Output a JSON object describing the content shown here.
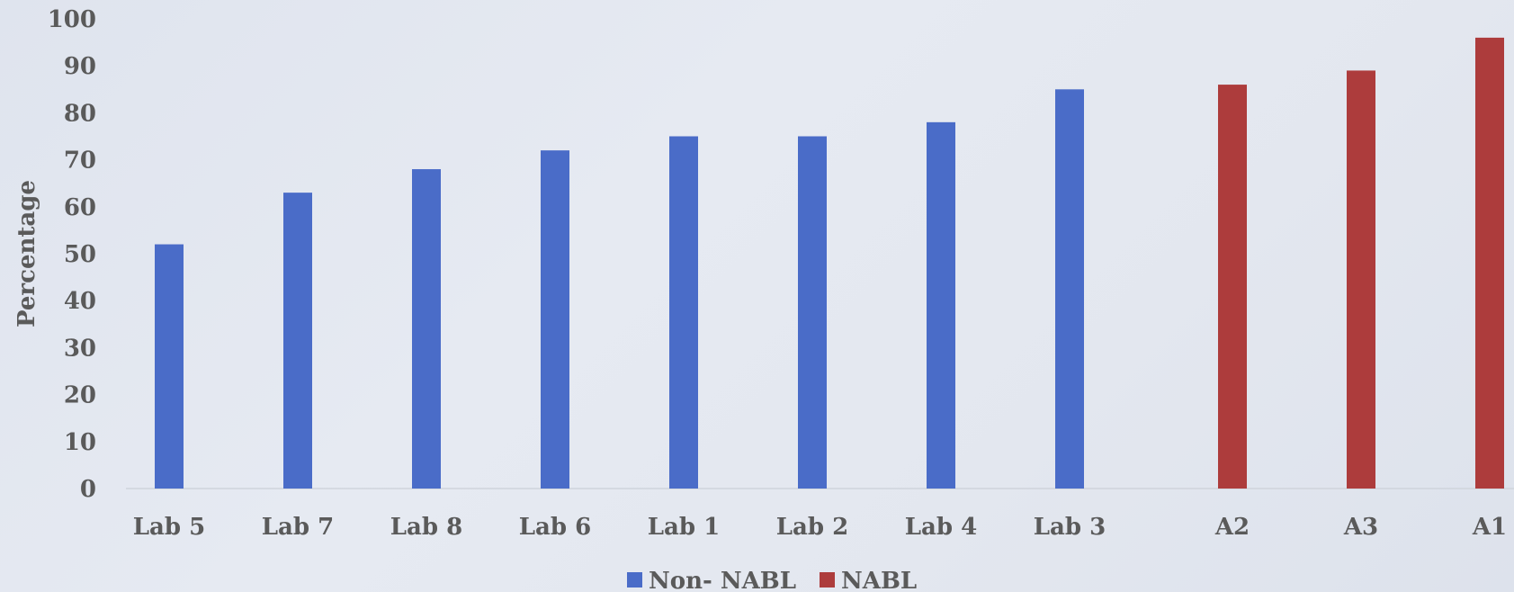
{
  "chart_data": {
    "type": "bar",
    "categories": [
      "Lab 5",
      "Lab 7",
      "Lab 8",
      "Lab 6",
      "Lab 1",
      "Lab 2",
      "Lab 4",
      "Lab 3",
      "A2",
      "A3",
      "A1"
    ],
    "series": [
      {
        "name": "Non- NABL",
        "color": "#4a6cc8",
        "values": [
          52,
          63,
          68,
          72,
          75,
          75,
          78,
          85,
          null,
          null,
          null
        ]
      },
      {
        "name": "NABL",
        "color": "#ad3c3c",
        "values": [
          null,
          null,
          null,
          null,
          null,
          null,
          null,
          null,
          86,
          89,
          96
        ]
      }
    ],
    "ylabel": "Percentage",
    "xlabel": "",
    "ylim": [
      0,
      100
    ],
    "yticks": [
      0,
      10,
      20,
      30,
      40,
      50,
      60,
      70,
      80,
      90,
      100
    ],
    "grid": false,
    "legend": "bottom-center"
  }
}
